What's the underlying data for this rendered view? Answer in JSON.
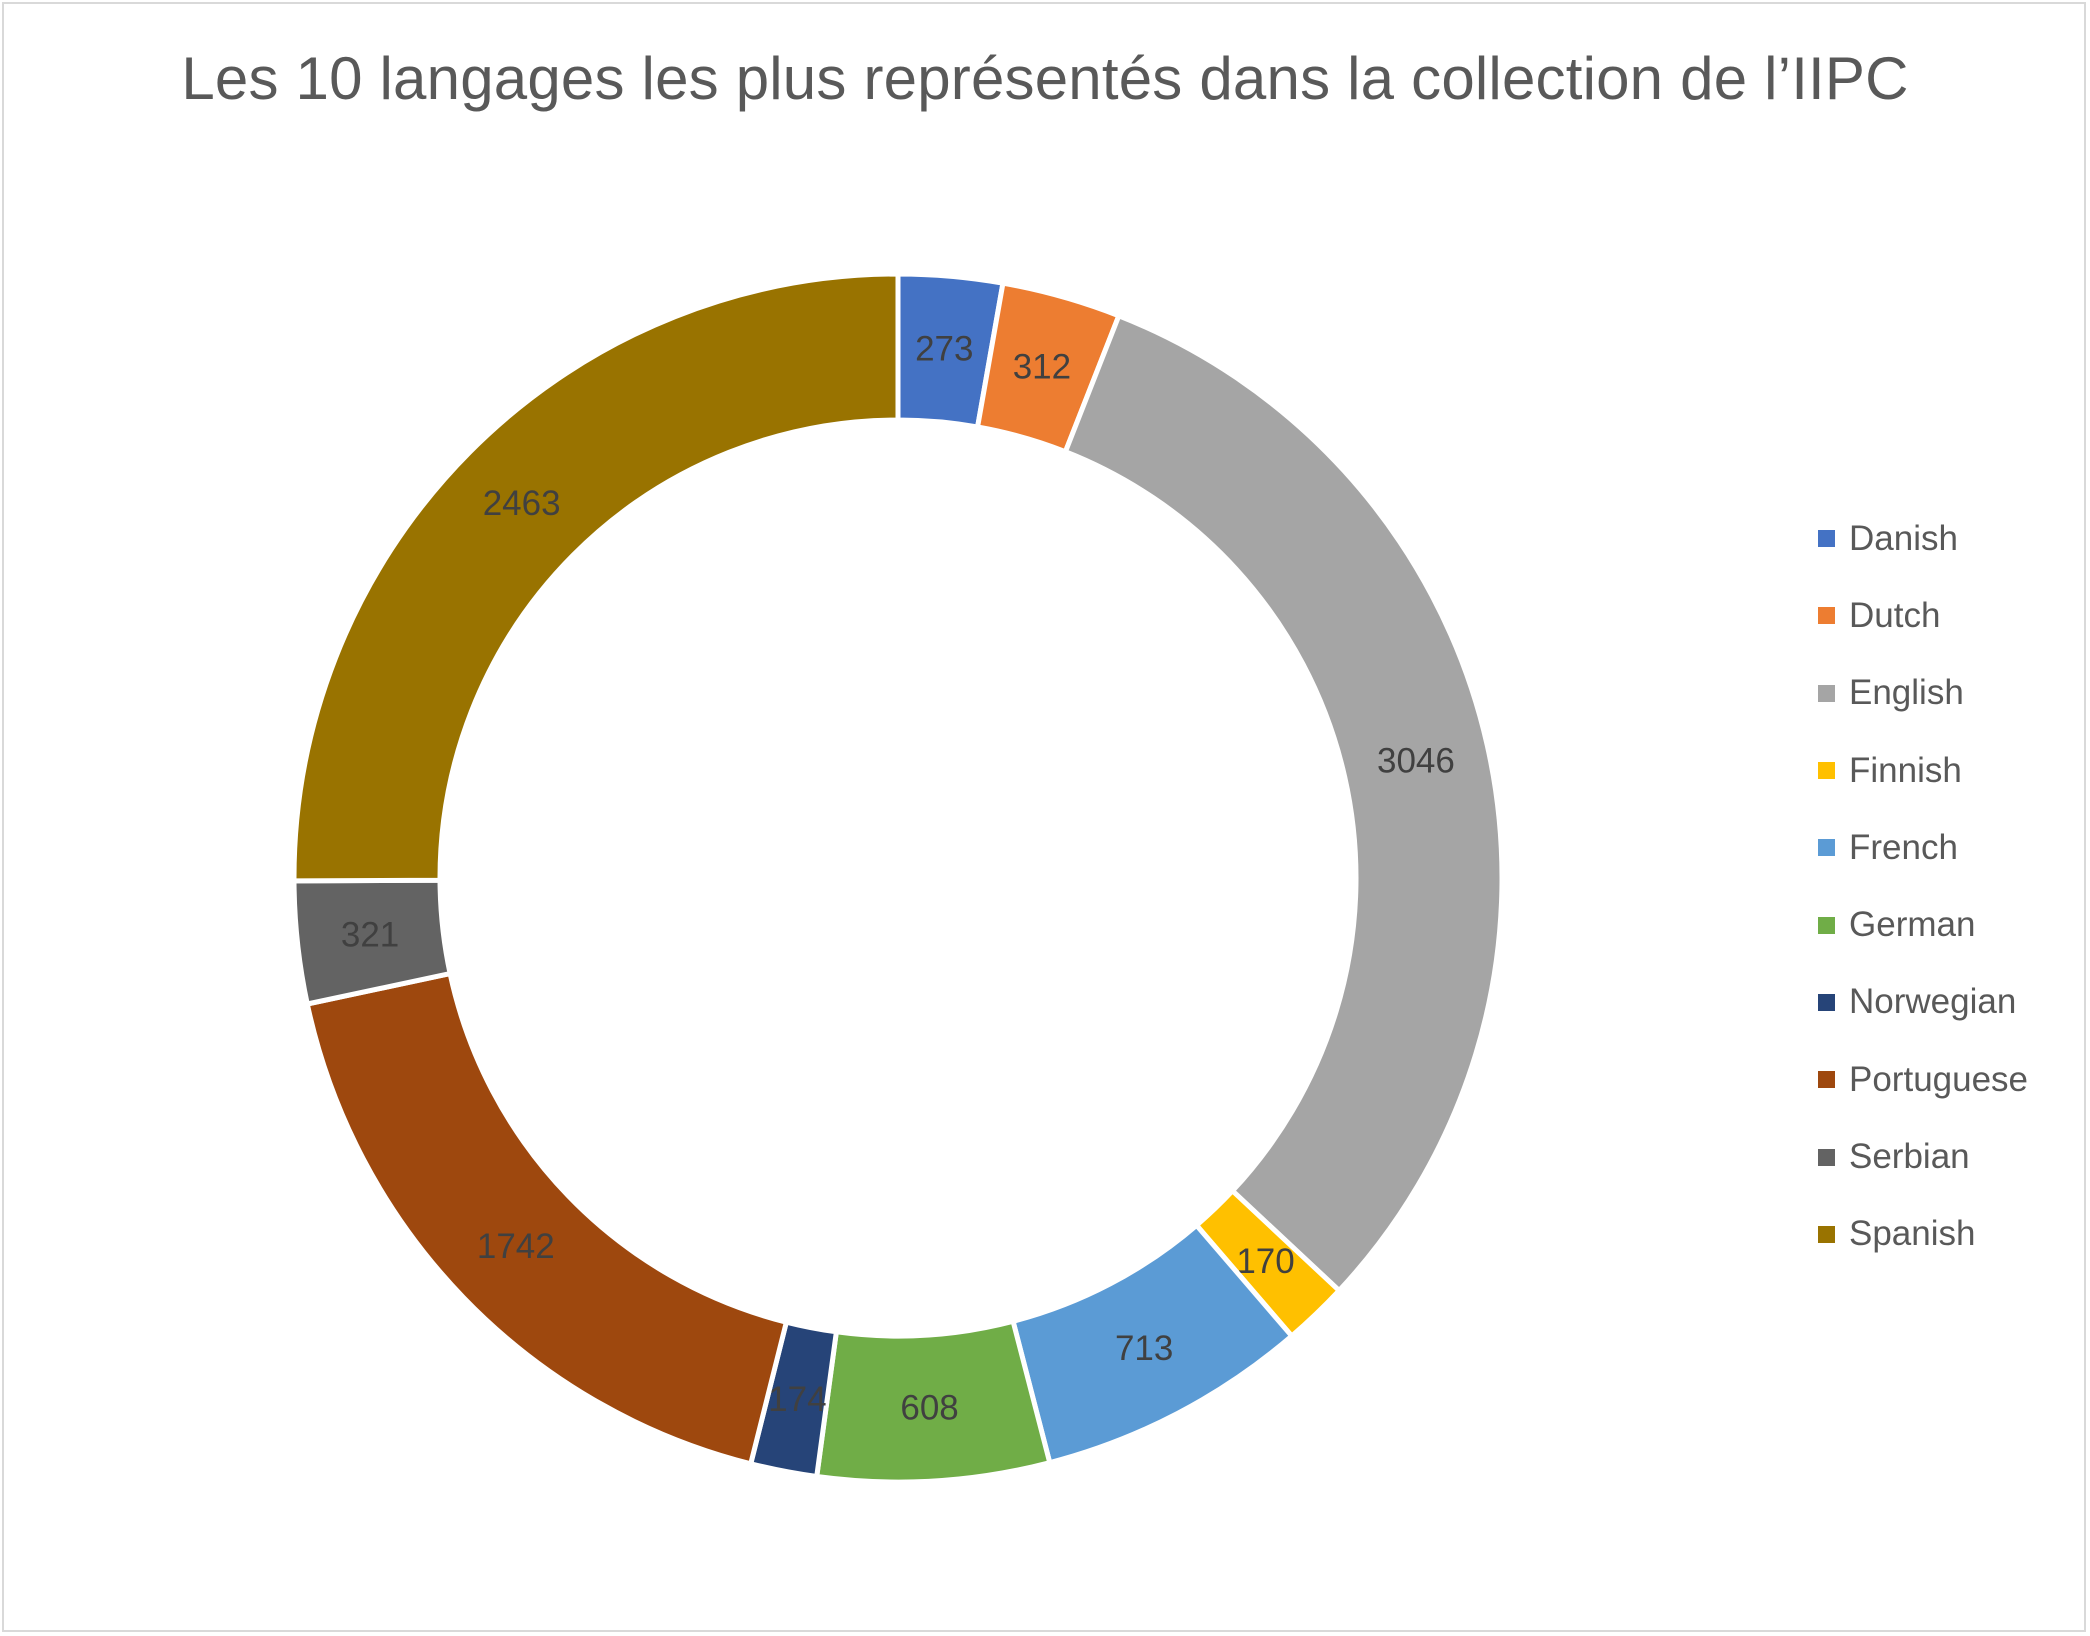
{
  "chart_data": {
    "type": "pie",
    "variant": "doughnut",
    "title": "Les 10 langages les plus représentés dans la collection de l’IIPC",
    "legend_position": "right",
    "data_labels": true,
    "categories": [
      "Danish",
      "Dutch",
      "English",
      "Finnish",
      "French",
      "German",
      "Norwegian",
      "Portuguese",
      "Serbian",
      "Spanish"
    ],
    "values": [
      273,
      312,
      3046,
      170,
      713,
      608,
      174,
      1742,
      321,
      2463
    ],
    "colors": [
      "#4472c4",
      "#ed7d31",
      "#a5a5a5",
      "#ffc000",
      "#5b9bd5",
      "#70ad47",
      "#264478",
      "#9e480e",
      "#636363",
      "#997300"
    ]
  }
}
